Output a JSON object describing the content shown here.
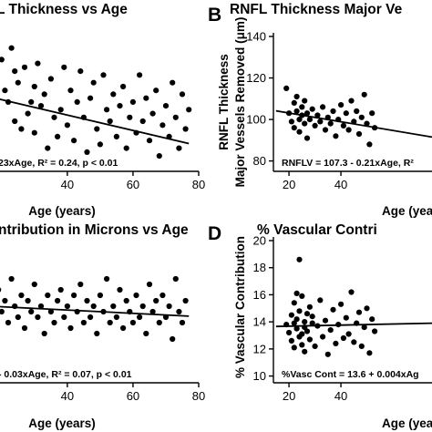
{
  "chart_data": [
    {
      "panel": "A",
      "letter": "",
      "type": "scatter",
      "title": "L Thickness vs Age",
      "xlabel": "Age (years)",
      "ylabel": "",
      "xlim": [
        17,
        80
      ],
      "ylim": [
        90,
        125
      ],
      "xticks": [
        40,
        60,
        80
      ],
      "yticks": [],
      "equation": "23xAge, R² = 0.24, p < 0.01",
      "regression": {
        "intercept": 112.6,
        "slope": -0.2
      },
      "points": [
        [
          20,
          119
        ],
        [
          21,
          111
        ],
        [
          22,
          108
        ],
        [
          23,
          122
        ],
        [
          24,
          116
        ],
        [
          24,
          103
        ],
        [
          25,
          113
        ],
        [
          26,
          101
        ],
        [
          27,
          117
        ],
        [
          28,
          105
        ],
        [
          29,
          108
        ],
        [
          30,
          112
        ],
        [
          30,
          100
        ],
        [
          31,
          118
        ],
        [
          32,
          107
        ],
        [
          33,
          110
        ],
        [
          34,
          96
        ],
        [
          35,
          114
        ],
        [
          36,
          104
        ],
        [
          37,
          99
        ],
        [
          38,
          106
        ],
        [
          39,
          117
        ],
        [
          40,
          102
        ],
        [
          41,
          111
        ],
        [
          42,
          98
        ],
        [
          43,
          108
        ],
        [
          44,
          116
        ],
        [
          45,
          104
        ],
        [
          46,
          95
        ],
        [
          47,
          109
        ],
        [
          48,
          113
        ],
        [
          49,
          101
        ],
        [
          50,
          97
        ],
        [
          51,
          115
        ],
        [
          52,
          106
        ],
        [
          53,
          103
        ],
        [
          54,
          110
        ],
        [
          55,
          99
        ],
        [
          56,
          107
        ],
        [
          57,
          112
        ],
        [
          58,
          96
        ],
        [
          59,
          104
        ],
        [
          60,
          108
        ],
        [
          61,
          100
        ],
        [
          62,
          115
        ],
        [
          63,
          103
        ],
        [
          64,
          109
        ],
        [
          65,
          98
        ],
        [
          66,
          105
        ],
        [
          67,
          111
        ],
        [
          68,
          94
        ],
        [
          69,
          102
        ],
        [
          70,
          107
        ],
        [
          71,
          99
        ],
        [
          72,
          113
        ],
        [
          73,
          104
        ],
        [
          74,
          96
        ],
        [
          75,
          110
        ],
        [
          76,
          101
        ],
        [
          77,
          106
        ]
      ]
    },
    {
      "panel": "B",
      "letter": "B",
      "type": "scatter",
      "title": "RNFL Thickness Major Ve",
      "xlabel": "Age (years",
      "ylabel": "RNFL Thickness Major Vessels Removed (μm)",
      "ylabel_lines": [
        "RNFL Thickness",
        "Major Vessels Removed (μm)"
      ],
      "xlim": [
        14,
        80
      ],
      "ylim": [
        75,
        140
      ],
      "xticks": [
        20,
        40
      ],
      "yticks": [
        80,
        100,
        120,
        140
      ],
      "equation": "RNFLV = 107.3 - 0.21xAge, R²",
      "regression": {
        "intercept": 107.3,
        "slope": -0.21
      },
      "points": [
        [
          19,
          115
        ],
        [
          20,
          103
        ],
        [
          21,
          99
        ],
        [
          22,
          108
        ],
        [
          22,
          96
        ],
        [
          23,
          104
        ],
        [
          23,
          111
        ],
        [
          24,
          100
        ],
        [
          24,
          94
        ],
        [
          25,
          106
        ],
        [
          25,
          102
        ],
        [
          26,
          98
        ],
        [
          26,
          109
        ],
        [
          27,
          103
        ],
        [
          27,
          91
        ],
        [
          28,
          100
        ],
        [
          29,
          105
        ],
        [
          30,
          97
        ],
        [
          31,
          102
        ],
        [
          32,
          99
        ],
        [
          33,
          106
        ],
        [
          34,
          95
        ],
        [
          35,
          101
        ],
        [
          36,
          98
        ],
        [
          37,
          104
        ],
        [
          38,
          92
        ],
        [
          39,
          100
        ],
        [
          40,
          107
        ],
        [
          41,
          97
        ],
        [
          42,
          103
        ],
        [
          43,
          95
        ],
        [
          44,
          109
        ],
        [
          45,
          99
        ],
        [
          46,
          104
        ],
        [
          47,
          93
        ],
        [
          48,
          101
        ],
        [
          49,
          112
        ],
        [
          50,
          98
        ],
        [
          51,
          88
        ],
        [
          52,
          103
        ],
        [
          53,
          96
        ]
      ]
    },
    {
      "panel": "C",
      "letter": "",
      "type": "scatter",
      "title": "ntribution in Microns vs Age",
      "xlabel": "Age (years)",
      "ylabel": "",
      "xlim": [
        17,
        80
      ],
      "ylim": [
        0,
        25
      ],
      "xticks": [
        40,
        60,
        80
      ],
      "yticks": [],
      "equation": "- 0.03xAge, R² = 0.07, p < 0.01",
      "regression": {
        "intercept": 14.5,
        "slope": -0.03
      },
      "points": [
        [
          19,
          17
        ],
        [
          20,
          13
        ],
        [
          21,
          15
        ],
        [
          22,
          11
        ],
        [
          23,
          19
        ],
        [
          24,
          14
        ],
        [
          25,
          12
        ],
        [
          26,
          16
        ],
        [
          27,
          10
        ],
        [
          28,
          15
        ],
        [
          29,
          13
        ],
        [
          30,
          18
        ],
        [
          31,
          12
        ],
        [
          32,
          14
        ],
        [
          33,
          9
        ],
        [
          34,
          16
        ],
        [
          35,
          13
        ],
        [
          36,
          11
        ],
        [
          37,
          15
        ],
        [
          38,
          17
        ],
        [
          39,
          12
        ],
        [
          40,
          14
        ],
        [
          41,
          10
        ],
        [
          42,
          16
        ],
        [
          43,
          13
        ],
        [
          44,
          18
        ],
        [
          45,
          11
        ],
        [
          46,
          15
        ],
        [
          47,
          12
        ],
        [
          48,
          14
        ],
        [
          49,
          9
        ],
        [
          50,
          16
        ],
        [
          51,
          13
        ],
        [
          52,
          19
        ],
        [
          53,
          11
        ],
        [
          54,
          14
        ],
        [
          55,
          12
        ],
        [
          56,
          17
        ],
        [
          57,
          10
        ],
        [
          58,
          15
        ],
        [
          59,
          13
        ],
        [
          60,
          11
        ],
        [
          61,
          16
        ],
        [
          62,
          12
        ],
        [
          63,
          14
        ],
        [
          64,
          9
        ],
        [
          65,
          18
        ],
        [
          66,
          13
        ],
        [
          67,
          15
        ],
        [
          68,
          11
        ],
        [
          69,
          16
        ],
        [
          70,
          12
        ],
        [
          71,
          14
        ],
        [
          72,
          8
        ],
        [
          73,
          19
        ],
        [
          74,
          13
        ],
        [
          75,
          11
        ],
        [
          76,
          15
        ]
      ]
    },
    {
      "panel": "D",
      "letter": "D",
      "type": "scatter",
      "title": "% Vascular Contri",
      "xlabel": "Age (years",
      "ylabel": "% Vascular Contribution",
      "xlim": [
        14,
        80
      ],
      "ylim": [
        9.5,
        20
      ],
      "xticks": [
        20,
        40
      ],
      "yticks": [
        10,
        12,
        14,
        16,
        18,
        20
      ],
      "equation": "%Vasc Cont = 13.6 + 0.004xAg",
      "regression": {
        "intercept": 13.6,
        "slope": 0.004
      },
      "points": [
        [
          19,
          13.8
        ],
        [
          20,
          13.2
        ],
        [
          21,
          14.5
        ],
        [
          21,
          12.6
        ],
        [
          22,
          13.9
        ],
        [
          22,
          15.4
        ],
        [
          22,
          12.1
        ],
        [
          23,
          14.2
        ],
        [
          23,
          13.5
        ],
        [
          23,
          16.1
        ],
        [
          24,
          18.6
        ],
        [
          24,
          12.9
        ],
        [
          24,
          14.8
        ],
        [
          25,
          13.1
        ],
        [
          25,
          15.9
        ],
        [
          25,
          12.3
        ],
        [
          26,
          14.0
        ],
        [
          26,
          13.6
        ],
        [
          26,
          11.8
        ],
        [
          27,
          14.6
        ],
        [
          27,
          13.3
        ],
        [
          28,
          12.7
        ],
        [
          28,
          15.1
        ],
        [
          29,
          13.9
        ],
        [
          29,
          14.4
        ],
        [
          30,
          12.2
        ],
        [
          31,
          13.7
        ],
        [
          32,
          15.6
        ],
        [
          33,
          12.9
        ],
        [
          34,
          14.1
        ],
        [
          35,
          11.6
        ],
        [
          36,
          13.4
        ],
        [
          37,
          14.9
        ],
        [
          38,
          12.4
        ],
        [
          39,
          13.8
        ],
        [
          40,
          15.3
        ],
        [
          41,
          12.8
        ],
        [
          42,
          14.3
        ],
        [
          43,
          13.1
        ],
        [
          44,
          16.2
        ],
        [
          45,
          12.5
        ],
        [
          46,
          13.9
        ],
        [
          47,
          14.7
        ],
        [
          48,
          12.2
        ],
        [
          49,
          13.6
        ],
        [
          50,
          15.0
        ],
        [
          51,
          11.7
        ],
        [
          52,
          14.2
        ],
        [
          53,
          13.3
        ]
      ]
    }
  ]
}
